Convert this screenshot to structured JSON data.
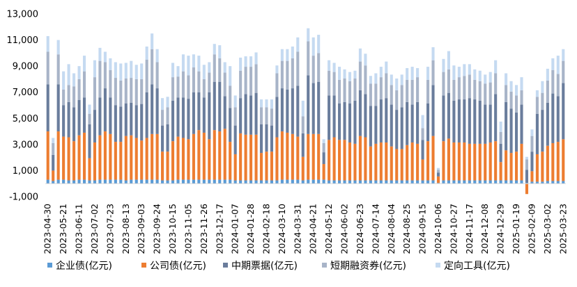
{
  "chart_data": {
    "type": "bar",
    "stacked": true,
    "title": "",
    "xlabel": "",
    "ylabel": "",
    "ylim": [
      -1000,
      13000
    ],
    "yticks": [
      -1000,
      1000,
      3000,
      5000,
      7000,
      9000,
      11000,
      13000
    ],
    "ytick_labels": [
      "-1,000",
      "1,000",
      "3,000",
      "5,000",
      "7,000",
      "9,000",
      "11,000",
      "13,000"
    ],
    "grid": false,
    "legend_position": "bottom",
    "x": [
      "2023-04-30",
      "2023-05-07",
      "2023-05-14",
      "2023-05-21",
      "2023-05-28",
      "2023-06-04",
      "2023-06-11",
      "2023-06-18",
      "2023-06-25",
      "2023-07-02",
      "2023-07-09",
      "2023-07-16",
      "2023-07-23",
      "2023-07-30",
      "2023-08-06",
      "2023-08-13",
      "2023-08-20",
      "2023-08-27",
      "2023-09-03",
      "2023-09-10",
      "2023-09-17",
      "2023-09-24",
      "2023-10-01",
      "2023-10-08",
      "2023-10-15",
      "2023-10-22",
      "2023-10-29",
      "2023-11-05",
      "2023-11-12",
      "2023-11-19",
      "2023-11-26",
      "2023-12-03",
      "2023-12-10",
      "2023-12-17",
      "2023-12-24",
      "2023-12-31",
      "2024-01-07",
      "2024-01-14",
      "2024-01-21",
      "2024-01-28",
      "2024-02-04",
      "2024-02-11",
      "2024-02-18",
      "2024-02-25",
      "2024-03-03",
      "2024-03-10",
      "2024-03-17",
      "2024-03-24",
      "2024-03-31",
      "2024-04-07",
      "2024-04-14",
      "2024-04-21",
      "2024-04-28",
      "2024-05-05",
      "2024-05-12",
      "2024-05-19",
      "2024-05-26",
      "2024-06-02",
      "2024-06-09",
      "2024-06-16",
      "2024-06-23",
      "2024-06-30",
      "2024-07-07",
      "2024-07-14",
      "2024-07-21",
      "2024-07-28",
      "2024-08-04",
      "2024-08-11",
      "2024-08-18",
      "2024-08-25",
      "2024-09-01",
      "2024-09-08",
      "2024-09-15",
      "2024-09-22",
      "2024-09-29",
      "2024-10-06",
      "2024-10-13",
      "2024-10-20",
      "2024-10-27",
      "2024-11-03",
      "2024-11-10",
      "2024-11-17",
      "2024-11-24",
      "2024-12-01",
      "2024-12-08",
      "2024-12-15",
      "2024-12-22",
      "2024-12-29",
      "2025-01-05",
      "2025-01-12",
      "2025-01-19",
      "2025-01-26",
      "2025-02-02",
      "2025-02-09",
      "2025-02-16",
      "2025-02-23",
      "2025-03-02",
      "2025-03-09",
      "2025-03-16",
      "2025-03-23"
    ],
    "xtick_labels": [
      "2023-04-30",
      "2023-05-21",
      "2023-06-11",
      "2023-07-02",
      "2023-07-23",
      "2023-08-13",
      "2023-09-03",
      "2023-09-24",
      "2023-10-15",
      "2023-11-05",
      "2023-11-26",
      "2023-12-17",
      "2024-01-07",
      "2024-01-28",
      "2024-02-18",
      "2024-03-10",
      "2024-03-31",
      "2024-04-21",
      "2024-05-12",
      "2024-06-02",
      "2024-06-23",
      "2024-07-14",
      "2024-08-04",
      "2024-08-25",
      "2024-09-15",
      "2024-10-06",
      "2024-10-27",
      "2024-11-17",
      "2024-12-08",
      "2024-12-29",
      "2025-01-19",
      "2025-02-09",
      "2025-03-02",
      "2025-03-23"
    ],
    "series": [
      {
        "name": "企业债(亿元)",
        "color": "#5b9bd5",
        "values": [
          300,
          200,
          300,
          300,
          250,
          250,
          300,
          300,
          250,
          250,
          300,
          300,
          300,
          300,
          300,
          250,
          300,
          300,
          300,
          300,
          300,
          300,
          250,
          250,
          250,
          300,
          300,
          300,
          300,
          300,
          300,
          300,
          300,
          300,
          300,
          300,
          250,
          250,
          250,
          250,
          250,
          250,
          250,
          250,
          250,
          300,
          300,
          300,
          300,
          250,
          300,
          300,
          300,
          300,
          250,
          250,
          250,
          250,
          250,
          250,
          250,
          250,
          250,
          250,
          250,
          250,
          250,
          250,
          250,
          250,
          250,
          250,
          250,
          250,
          250,
          50,
          250,
          250,
          250,
          250,
          250,
          250,
          250,
          250,
          250,
          250,
          250,
          250,
          250,
          250,
          250,
          250,
          50,
          150,
          150,
          150,
          200,
          200,
          200,
          200
        ]
      },
      {
        "name": "公司债(亿元)",
        "color": "#ed7d31",
        "values": [
          3700,
          800,
          3700,
          3300,
          3300,
          3000,
          3400,
          3600,
          1700,
          2900,
          3400,
          3700,
          3500,
          2900,
          2900,
          3400,
          3400,
          3200,
          3000,
          3200,
          3500,
          3500,
          2200,
          2200,
          3000,
          3300,
          3200,
          3100,
          3500,
          3800,
          3600,
          3100,
          3800,
          3700,
          3900,
          2900,
          2000,
          3600,
          3500,
          3500,
          3500,
          2100,
          2200,
          2200,
          3300,
          3700,
          3600,
          3500,
          3300,
          1800,
          3500,
          3500,
          3500,
          1200,
          3100,
          3300,
          3100,
          3100,
          2900,
          2800,
          3400,
          3300,
          2600,
          2800,
          2900,
          2900,
          2600,
          2400,
          2400,
          2700,
          2900,
          2800,
          1600,
          3000,
          3400,
          500,
          3000,
          3200,
          2900,
          2900,
          2900,
          2800,
          2800,
          2800,
          2800,
          2900,
          3000,
          1400,
          2300,
          2100,
          2200,
          2800,
          -800,
          800,
          2100,
          2300,
          2700,
          2900,
          3000,
          3200
        ]
      },
      {
        "name": "中期票据(亿元)",
        "color": "#6a7d9c",
        "values": [
          3600,
          1200,
          3600,
          2400,
          2700,
          2600,
          2700,
          2700,
          2600,
          2500,
          2900,
          3300,
          2800,
          2800,
          2700,
          2500,
          2500,
          2500,
          2800,
          3500,
          3800,
          3500,
          2000,
          2100,
          3100,
          3000,
          3100,
          3100,
          3200,
          2900,
          2700,
          3600,
          3700,
          3800,
          2500,
          2600,
          2200,
          2700,
          3100,
          3000,
          3200,
          2200,
          2100,
          2000,
          3100,
          3300,
          3300,
          3500,
          3900,
          1800,
          4500,
          3900,
          4000,
          900,
          3400,
          3200,
          2800,
          2900,
          3000,
          3300,
          3500,
          3300,
          3100,
          2900,
          3300,
          3400,
          3200,
          3000,
          3200,
          3300,
          2900,
          3200,
          1500,
          2900,
          3900,
          300,
          3500,
          3500,
          3200,
          3300,
          3300,
          3500,
          3400,
          3300,
          3000,
          2900,
          3600,
          1400,
          3700,
          3400,
          3000,
          3000,
          1000,
          1500,
          3100,
          3200,
          3300,
          3800,
          3500,
          4300
        ]
      },
      {
        "name": "短期融资券(亿元)",
        "color": "#a8b4c8",
        "values": [
          2500,
          900,
          2300,
          1200,
          1300,
          1600,
          1600,
          2000,
          800,
          2500,
          2800,
          2000,
          2100,
          2100,
          2000,
          1900,
          1900,
          2000,
          1900,
          2500,
          2700,
          2000,
          1200,
          1300,
          1800,
          1600,
          2000,
          1800,
          1900,
          1600,
          1400,
          1500,
          2100,
          1800,
          1800,
          1700,
          1400,
          2100,
          2100,
          2200,
          2200,
          1300,
          1300,
          1300,
          1800,
          2100,
          2200,
          2300,
          2600,
          1300,
          2600,
          2100,
          2200,
          700,
          1900,
          1800,
          1800,
          1800,
          1700,
          1700,
          2200,
          2200,
          1700,
          1700,
          1700,
          1900,
          1500,
          1500,
          1700,
          1700,
          1900,
          1900,
          900,
          1800,
          1900,
          200,
          1800,
          1800,
          1600,
          1700,
          1800,
          1800,
          1500,
          1500,
          1600,
          1700,
          1600,
          900,
          1300,
          1300,
          1300,
          1100,
          800,
          1200,
          1300,
          1300,
          1700,
          1800,
          1700,
          1700
        ]
      },
      {
        "name": "定向工具(亿元)",
        "color": "#c5daf1",
        "values": [
          1200,
          400,
          1100,
          1400,
          1600,
          1000,
          1000,
          1200,
          700,
          1300,
          1000,
          800,
          900,
          1200,
          1300,
          1200,
          1300,
          1100,
          1200,
          1000,
          1200,
          1000,
          900,
          800,
          1100,
          800,
          1300,
          1500,
          1000,
          1200,
          1100,
          800,
          800,
          1000,
          800,
          1500,
          900,
          1000,
          800,
          800,
          900,
          600,
          600,
          700,
          600,
          900,
          900,
          900,
          1100,
          1200,
          1000,
          1400,
          1400,
          300,
          800,
          700,
          1000,
          700,
          700,
          600,
          1000,
          900,
          600,
          800,
          800,
          900,
          800,
          900,
          800,
          900,
          1000,
          700,
          1000,
          1000,
          1000,
          150,
          1000,
          1400,
          1100,
          800,
          900,
          800,
          800,
          800,
          700,
          800,
          1000,
          800,
          900,
          800,
          800,
          1000,
          200,
          500,
          500,
          900,
          900,
          900,
          1400,
          900
        ]
      }
    ]
  }
}
